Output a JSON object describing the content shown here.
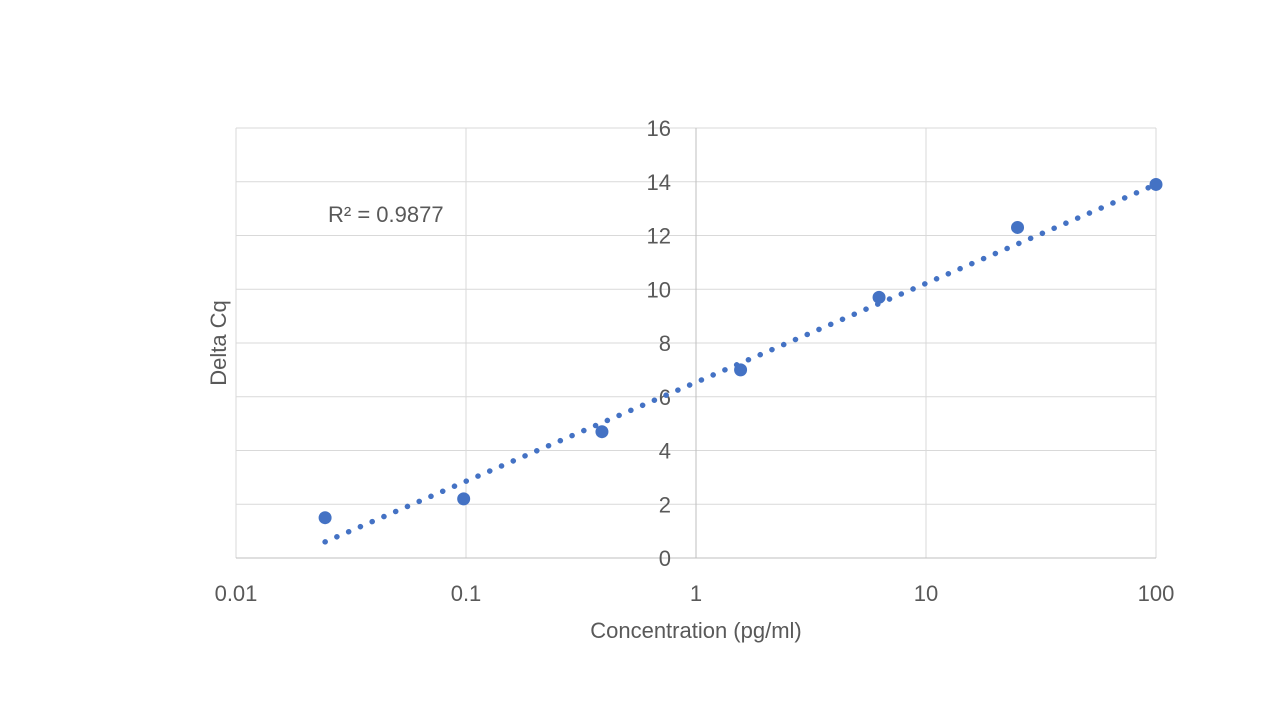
{
  "chart_data": {
    "type": "scatter",
    "title": "",
    "xlabel": "Concentration (pg/ml)",
    "ylabel": "Delta Cq",
    "xscale": "log",
    "xlim": [
      0.01,
      100
    ],
    "ylim": [
      0,
      16
    ],
    "x_ticks": [
      "0.01",
      "0.1",
      "1",
      "10",
      "100"
    ],
    "y_ticks": [
      "0",
      "2",
      "4",
      "6",
      "8",
      "10",
      "12",
      "14",
      "16"
    ],
    "grid": true,
    "legend": "none",
    "marker_color": "#4472c4",
    "series": [
      {
        "x": [
          0.0244,
          0.0977,
          0.39,
          1.5625,
          6.25,
          25,
          100
        ],
        "y": [
          1.5,
          2.2,
          4.7,
          7.0,
          9.7,
          12.3,
          13.9
        ]
      }
    ],
    "trendline": {
      "type": "logarithmic",
      "style": "dotted",
      "x_range": [
        0.0244,
        100
      ],
      "y_range": [
        0.6,
        13.9
      ]
    },
    "annotation": {
      "label": "R² = 0.9877"
    }
  }
}
